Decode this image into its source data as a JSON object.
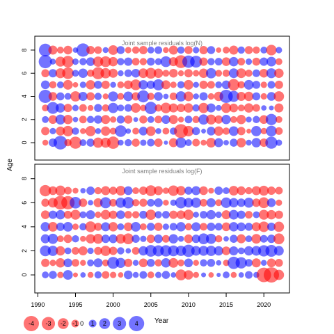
{
  "chart_data": [
    {
      "type": "scatter",
      "title": "Joint sample residuals log(N)",
      "ylabel": "Age",
      "xlim": [
        1989.6,
        2023.4
      ],
      "ylim": [
        -1.5,
        9.2
      ],
      "yticks": [
        0,
        2,
        4,
        6,
        8
      ],
      "ages": [
        0,
        1,
        2,
        3,
        4,
        5,
        6,
        7,
        8
      ],
      "years": [
        1991,
        1992,
        1993,
        1994,
        1995,
        1996,
        1997,
        1998,
        1999,
        2000,
        2001,
        2002,
        2003,
        2004,
        2005,
        2006,
        2007,
        2008,
        2009,
        2010,
        2011,
        2012,
        2013,
        2014,
        2015,
        2016,
        2017,
        2018,
        2019,
        2020,
        2021,
        2022
      ],
      "residuals": [
        [
          -0.6,
          1.2,
          3.2,
          -0.9,
          -2.5,
          0.8,
          1.1,
          -1.8,
          -1.7,
          -2.6,
          0.6,
          0.9,
          -1.1,
          0.7,
          1.0,
          -1.2,
          0.3,
          -1.4,
          1.9,
          0.8,
          -1.0,
          -0.6,
          -1.6,
          1.4,
          0.5,
          1.1,
          -1.5,
          0.6,
          1.5,
          -1.2,
          2.5,
          0.7
        ],
        [
          -1.2,
          0.7,
          -1.4,
          -1.9,
          0.9,
          -0.6,
          -1.8,
          0.6,
          -1.5,
          -0.8,
          2.3,
          0.5,
          -0.8,
          1.3,
          -1.6,
          0.6,
          -0.8,
          0.9,
          -3.3,
          -1.9,
          1.1,
          0.4,
          1.3,
          -1.5,
          -0.9,
          1.6,
          -1.2,
          -0.4,
          1.8,
          -0.7,
          2.0,
          -1.0
        ],
        [
          0.8,
          -1.3,
          1.7,
          -1.5,
          0.5,
          -1.0,
          0.9,
          1.2,
          -1.4,
          -0.7,
          1.1,
          -1.2,
          0.4,
          -1.1,
          0.8,
          -1.0,
          1.3,
          -1.4,
          -0.6,
          1.0,
          -0.9,
          1.8,
          -1.7,
          -1.2,
          1.5,
          -0.8,
          -1.5,
          0.6,
          0.9,
          -1.3,
          2.2,
          -0.8
        ],
        [
          -0.8,
          2.4,
          1.5,
          -1.2,
          0.7,
          -1.0,
          -0.6,
          1.1,
          -0.9,
          1.8,
          0.8,
          1.0,
          -1.6,
          -0.7,
          2.6,
          -0.9,
          -1.9,
          -1.4,
          -1.2,
          -1.5,
          0.9,
          -1.8,
          1.4,
          0.6,
          -1.7,
          -1.3,
          -0.8,
          -1.5,
          -1.0,
          0.5,
          0.4,
          -1.4
        ],
        [
          3.0,
          -1.3,
          1.1,
          0.8,
          -1.8,
          1.4,
          -1.2,
          0.9,
          -0.6,
          1.7,
          -0.8,
          1.6,
          -1.2,
          2.5,
          -0.9,
          1.3,
          0.5,
          -1.0,
          1.8,
          -1.6,
          0.6,
          1.2,
          -0.7,
          -1.5,
          3.0,
          2.1,
          -1.4,
          -1.5,
          1.1,
          -0.7,
          1.3,
          -1.8
        ]
      ],
      "residuals_ages_5_to_8": [
        [
          1.3,
          -0.9,
          0.8,
          -1.6,
          -0.5,
          0.7,
          -1.5,
          1.1,
          -1.2,
          0.6,
          -0.8,
          -1.3,
          -2.0,
          1.5,
          1.2,
          2.1,
          -1.4,
          -0.7,
          0.9,
          -1.6,
          0.6,
          -1.2,
          -1.0,
          0.8,
          1.3,
          -2.3,
          -0.9,
          1.6,
          1.1,
          -0.7,
          1.0,
          -1.2
        ],
        [
          -1.1,
          1.2,
          -1.7,
          -2.3,
          0.8,
          1.5,
          -0.9,
          -2.5,
          -1.8,
          -1.4,
          0.6,
          1.0,
          1.3,
          -1.6,
          -2.0,
          -1.5,
          -0.8,
          -1.3,
          -0.6,
          -1.2,
          -0.7,
          -1.5,
          1.8,
          -0.8,
          -0.9,
          1.6,
          -1.6,
          -0.9,
          1.0,
          -1.3,
          1.7,
          -1.5
        ],
        [
          3.0,
          0.6,
          -1.7,
          -2.3,
          0.7,
          0.9,
          1.3,
          -1.8,
          -2.0,
          -1.5,
          0.9,
          1.2,
          -1.0,
          -0.9,
          1.1,
          0.8,
          2.0,
          -1.4,
          -2.8,
          2.6,
          2.4,
          -1.2,
          0.9,
          1.0,
          -1.3,
          1.5,
          -1.0,
          0.7,
          -1.1,
          1.2,
          1.6,
          -0.8
        ],
        [
          2.8,
          -1.4,
          -0.8,
          -1.3,
          0.5,
          3.0,
          -1.2,
          -1.0,
          0.6,
          -1.6,
          1.1,
          -0.7,
          -0.9,
          -1.2,
          0.8,
          1.0,
          -0.6,
          -1.4,
          0.9,
          -1.1,
          0.7,
          -1.2,
          1.1,
          -0.5,
          -0.8,
          -1.4,
          0.9,
          -1.1,
          -0.9,
          0.8,
          -1.9,
          0.7
        ]
      ]
    },
    {
      "type": "scatter",
      "title": "Joint sample residuals log(F)",
      "xlabel": "Year",
      "ylabel": "Age",
      "xlim": [
        1989.6,
        2023.4
      ],
      "ylim": [
        -1.5,
        9.2
      ],
      "yticks": [
        0,
        2,
        4,
        6,
        8
      ],
      "xticks": [
        1990,
        1995,
        2000,
        2005,
        2010,
        2015,
        2020
      ],
      "ages": [
        0,
        1,
        2,
        3,
        4,
        5,
        6,
        7
      ],
      "years": [
        1991,
        1992,
        1993,
        1994,
        1995,
        1996,
        1997,
        1998,
        1999,
        2000,
        2001,
        2002,
        2003,
        2004,
        2005,
        2006,
        2007,
        2008,
        2009,
        2010,
        2011,
        2012,
        2013,
        2014,
        2015,
        2016,
        2017,
        2018,
        2019,
        2020,
        2021,
        2022
      ],
      "residuals": [
        [
          0.8,
          1.1,
          -0.7,
          1.6,
          -0.4,
          0.5,
          -0.6,
          0.9,
          -1.0,
          -0.7,
          -0.5,
          1.3,
          0.6,
          1.0,
          -0.8,
          0.7,
          1.1,
          0.5,
          -2.0,
          -1.5,
          -0.6,
          0.4,
          -0.5,
          0.3,
          0.8,
          -0.6,
          0.5,
          1.0,
          0.6,
          -3.6,
          -4.0,
          -1.8
        ],
        [
          -1.2,
          -0.7,
          -1.5,
          1.3,
          -1.0,
          -0.6,
          0.8,
          1.4,
          -0.8,
          2.4,
          1.7,
          -1.2,
          0.6,
          -1.3,
          1.1,
          -0.9,
          1.5,
          -1.6,
          -0.8,
          1.3,
          -0.6,
          0.9,
          1.1,
          0.5,
          -0.7,
          2.6,
          2.2,
          1.0,
          -1.4,
          0.6,
          -1.3,
          -1.1
        ],
        [
          2.0,
          1.8,
          -1.5,
          0.8,
          -1.0,
          -1.4,
          0.7,
          -1.1,
          -1.8,
          -1.2,
          0.9,
          0.5,
          -1.0,
          1.5,
          2.3,
          2.1,
          2.2,
          2.0,
          1.8,
          2.6,
          1.6,
          1.7,
          1.8,
          1.5,
          -1.3,
          1.4,
          0.8,
          1.5,
          1.6,
          2.2,
          2.4,
          1.6
        ],
        [
          1.4,
          1.8,
          -0.8,
          -1.2,
          0.9,
          -0.6,
          -1.5,
          -1.7,
          1.2,
          1.3,
          -1.6,
          -2.0,
          1.1,
          0.7,
          -1.2,
          1.3,
          -1.0,
          1.5,
          0.6,
          -1.3,
          1.2,
          2.0,
          1.8,
          -0.9,
          0.5,
          1.1,
          -1.4,
          0.8,
          -1.6,
          1.0,
          1.2,
          -2.0
        ],
        [
          1.5,
          -1.6,
          1.2,
          1.6,
          -0.7,
          0.9,
          -2.0,
          -1.1,
          1.4,
          -1.5,
          0.8,
          -1.3,
          1.6,
          -0.8,
          1.1,
          -1.2,
          0.7,
          1.0,
          1.5,
          -0.9,
          1.4,
          -1.0,
          1.2,
          1.0,
          -1.3,
          1.5,
          1.3,
          1.1,
          -1.4,
          -1.9,
          1.2,
          -1.8
        ],
        [
          -1.3,
          1.2,
          1.5,
          -1.1,
          -1.7,
          0.8,
          1.4,
          -0.7,
          -1.6,
          -1.2,
          1.3,
          -1.0,
          -0.9,
          1.1,
          -1.8,
          0.9,
          1.0,
          -1.2,
          -1.3,
          -1.8,
          0.6,
          1.0,
          1.5,
          0.7,
          -1.4,
          1.6,
          1.2,
          -1.0,
          0.8,
          -1.7,
          -1.5,
          -1.2
        ],
        [
          -1.1,
          -1.6,
          -3.2,
          -3.0,
          2.3,
          -1.2,
          0.5,
          -1.4,
          2.1,
          -1.0,
          1.8,
          2.2,
          -0.9,
          -1.1,
          1.0,
          1.3,
          -0.6,
          0.7,
          2.2,
          1.6,
          1.8,
          -1.0,
          1.4,
          -0.8,
          1.9,
          1.5,
          1.2,
          1.7,
          -1.2,
          -2.0,
          1.3,
          -0.7
        ],
        [
          -2.2,
          -1.3,
          -1.8,
          -1.0,
          -0.6,
          0.5,
          1.2,
          -0.9,
          -1.4,
          -1.1,
          -1.6,
          1.3,
          -0.8,
          -1.2,
          -2.0,
          -1.4,
          -0.7,
          -1.9,
          -1.5,
          1.1,
          1.4,
          -1.3,
          -0.6,
          1.2,
          0.8,
          -1.6,
          -1.3,
          -0.9,
          -1.4,
          -1.7,
          -1.2,
          -1.0
        ]
      ]
    }
  ],
  "legend": {
    "values": [
      -4,
      -3,
      -2,
      -1,
      0,
      1,
      2,
      3,
      4
    ],
    "labels": [
      "-4",
      "-3",
      "-2",
      "-1",
      "0",
      "1",
      "2",
      "3",
      "4"
    ],
    "xlabel": "Year"
  },
  "colors": {
    "negative_fill": "#ff0000",
    "positive_fill": "#0000ff",
    "fill_opacity": 0.55
  }
}
